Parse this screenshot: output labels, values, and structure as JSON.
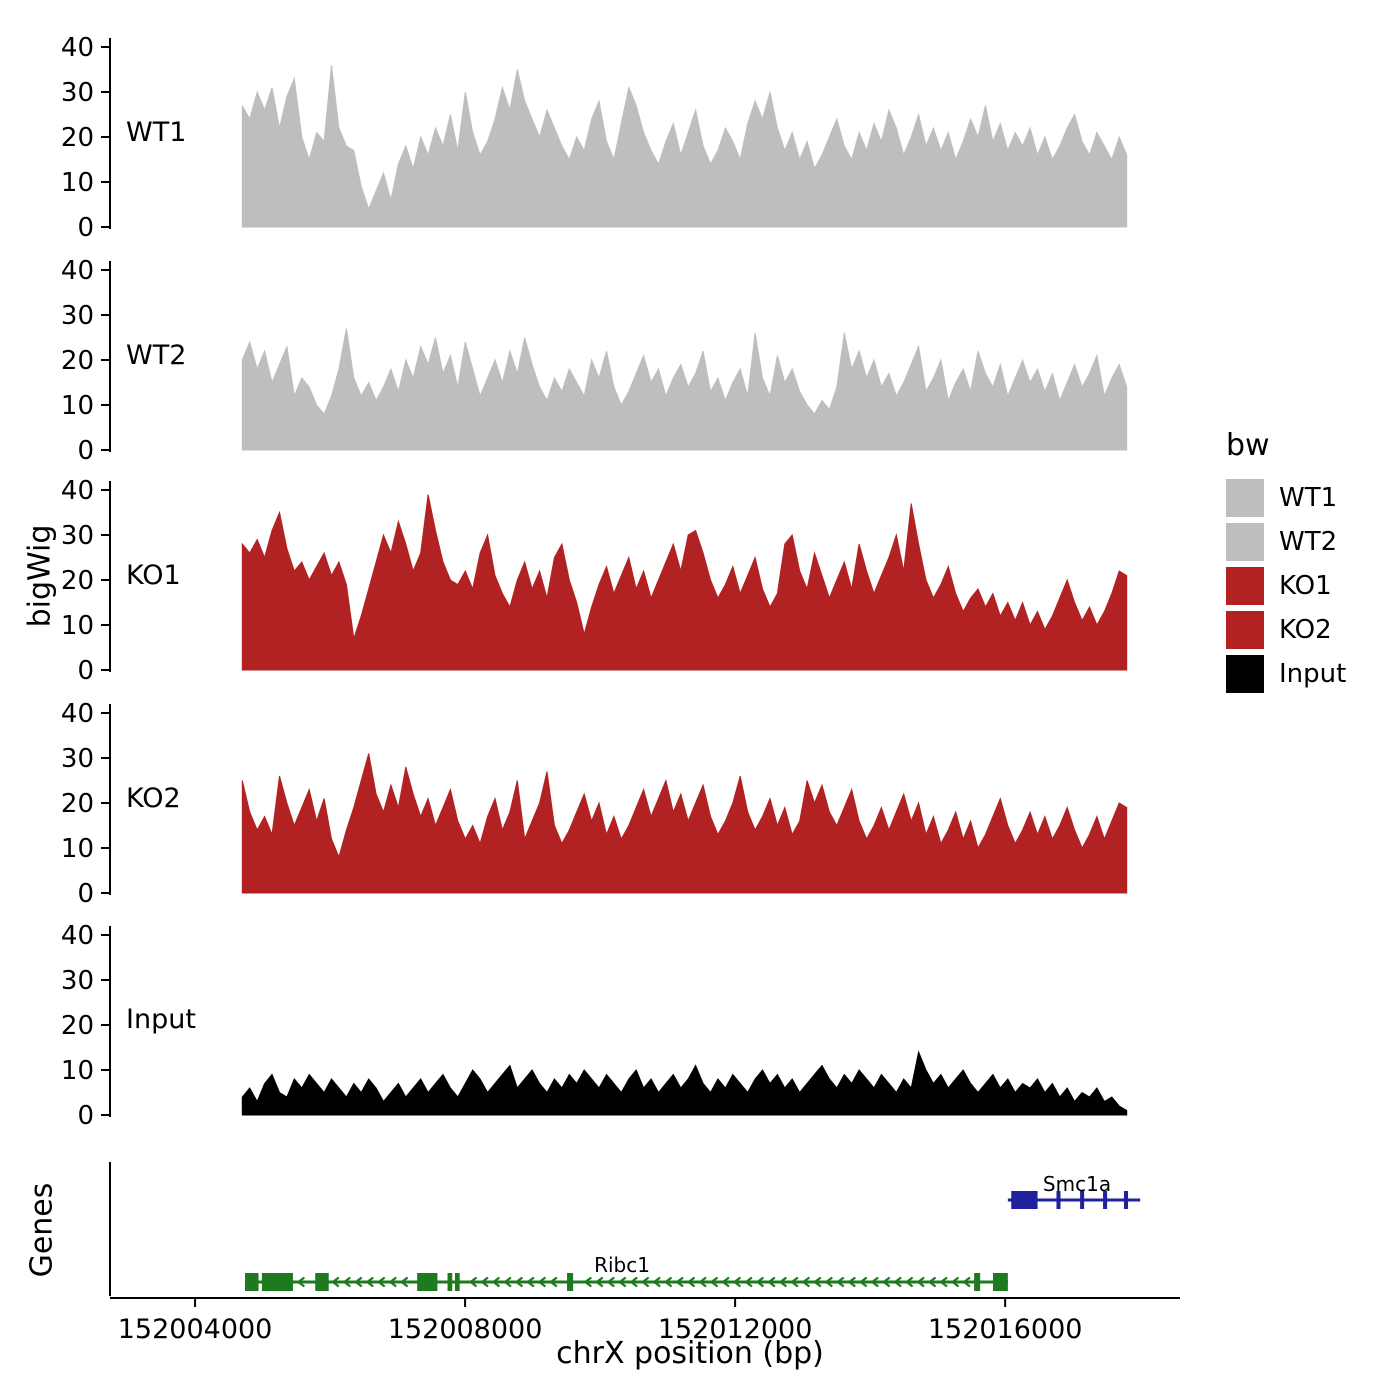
{
  "figure": {
    "ylab": "bigWig",
    "genes_lab": "Genes",
    "xlab": "chrX position (bp)"
  },
  "legend": {
    "title": "bw",
    "items": [
      {
        "label": "WT1",
        "color": "#bebebe"
      },
      {
        "label": "WT2",
        "color": "#bebebe"
      },
      {
        "label": "KO1",
        "color": "#b22222"
      },
      {
        "label": "KO2",
        "color": "#b22222"
      },
      {
        "label": "Input",
        "color": "#000000"
      }
    ]
  },
  "chart_data": {
    "type": "area",
    "title": "",
    "xlabel": "chrX position (bp)",
    "ylabel": "bigWig",
    "legend_position": "right",
    "grid": false,
    "xlim": [
      152002740,
      152018590
    ],
    "x_ticks": [
      152004000,
      152008000,
      152012000,
      152016000
    ],
    "x_tick_labels": [
      "152004000",
      "152008000",
      "152012000",
      "152016000"
    ],
    "ylim": [
      0,
      40
    ],
    "y_ticks": [
      0,
      10,
      20,
      30,
      40
    ],
    "x_data_range": [
      152004700,
      152017800
    ],
    "tracks": [
      {
        "name": "WT1",
        "color": "#bebebe",
        "values": [
          27,
          24,
          30,
          26,
          31,
          22,
          29,
          33,
          20,
          15,
          21,
          19,
          36,
          22,
          18,
          17,
          9,
          4,
          8,
          12,
          6,
          14,
          18,
          13,
          20,
          16,
          22,
          18,
          25,
          17,
          30,
          21,
          16,
          19,
          24,
          31,
          26,
          35,
          28,
          24,
          20,
          26,
          22,
          18,
          15,
          20,
          17,
          24,
          28,
          19,
          15,
          23,
          31,
          27,
          21,
          17,
          14,
          19,
          23,
          16,
          21,
          26,
          18,
          14,
          17,
          22,
          19,
          15,
          23,
          28,
          24,
          30,
          22,
          17,
          21,
          15,
          19,
          13,
          16,
          20,
          24,
          18,
          15,
          21,
          17,
          23,
          19,
          26,
          22,
          16,
          20,
          25,
          18,
          22,
          17,
          21,
          15,
          19,
          24,
          20,
          27,
          19,
          23,
          17,
          21,
          18,
          22,
          16,
          20,
          15,
          18,
          22,
          25,
          19,
          16,
          21,
          18,
          15,
          20,
          16
        ]
      },
      {
        "name": "WT2",
        "color": "#bebebe",
        "values": [
          20,
          24,
          18,
          22,
          15,
          19,
          23,
          12,
          16,
          14,
          10,
          8,
          12,
          18,
          27,
          16,
          12,
          15,
          11,
          14,
          18,
          13,
          20,
          16,
          23,
          19,
          25,
          17,
          21,
          14,
          24,
          18,
          12,
          16,
          20,
          15,
          22,
          17,
          25,
          19,
          14,
          11,
          16,
          13,
          18,
          15,
          12,
          20,
          16,
          22,
          14,
          10,
          13,
          17,
          21,
          15,
          18,
          12,
          16,
          19,
          14,
          17,
          22,
          13,
          16,
          11,
          15,
          18,
          12,
          26,
          16,
          12,
          21,
          15,
          18,
          13,
          10,
          8,
          11,
          9,
          14,
          26,
          18,
          22,
          16,
          20,
          14,
          17,
          12,
          15,
          19,
          23,
          13,
          16,
          20,
          11,
          15,
          18,
          13,
          22,
          17,
          14,
          19,
          12,
          16,
          20,
          15,
          18,
          13,
          17,
          11,
          15,
          19,
          14,
          17,
          21,
          12,
          16,
          19,
          14
        ]
      },
      {
        "name": "KO1",
        "color": "#b22222",
        "values": [
          28,
          26,
          29,
          25,
          31,
          35,
          27,
          22,
          24,
          20,
          23,
          26,
          21,
          24,
          19,
          7,
          12,
          18,
          24,
          30,
          26,
          33,
          28,
          22,
          26,
          39,
          31,
          24,
          20,
          19,
          22,
          18,
          26,
          30,
          21,
          17,
          14,
          20,
          24,
          18,
          22,
          16,
          25,
          28,
          20,
          15,
          8,
          14,
          19,
          23,
          17,
          21,
          25,
          18,
          22,
          16,
          20,
          24,
          28,
          22,
          30,
          31,
          26,
          20,
          16,
          19,
          23,
          17,
          21,
          25,
          18,
          14,
          17,
          28,
          30,
          22,
          18,
          26,
          21,
          16,
          20,
          24,
          18,
          28,
          22,
          17,
          21,
          25,
          30,
          22,
          37,
          28,
          20,
          16,
          19,
          23,
          17,
          13,
          16,
          18,
          14,
          17,
          12,
          15,
          11,
          15,
          10,
          13,
          9,
          12,
          16,
          20,
          15,
          11,
          14,
          10,
          13,
          17,
          22,
          21
        ]
      },
      {
        "name": "KO2",
        "color": "#b22222",
        "values": [
          25,
          18,
          14,
          17,
          13,
          26,
          20,
          15,
          19,
          23,
          16,
          21,
          12,
          8,
          14,
          19,
          25,
          31,
          22,
          18,
          24,
          19,
          28,
          22,
          17,
          21,
          15,
          19,
          23,
          16,
          12,
          15,
          11,
          17,
          21,
          14,
          18,
          25,
          12,
          16,
          20,
          27,
          15,
          11,
          14,
          18,
          22,
          16,
          20,
          13,
          17,
          12,
          15,
          19,
          23,
          17,
          21,
          25,
          18,
          22,
          16,
          20,
          24,
          17,
          13,
          16,
          20,
          26,
          18,
          14,
          17,
          21,
          15,
          19,
          13,
          16,
          25,
          20,
          24,
          18,
          15,
          19,
          23,
          16,
          12,
          15,
          19,
          14,
          18,
          22,
          16,
          20,
          13,
          17,
          11,
          14,
          18,
          12,
          16,
          10,
          13,
          17,
          21,
          15,
          11,
          14,
          18,
          13,
          17,
          12,
          15,
          19,
          14,
          10,
          13,
          17,
          12,
          16,
          20,
          19
        ]
      },
      {
        "name": "Input",
        "color": "#000000",
        "values": [
          4,
          6,
          3,
          7,
          9,
          5,
          4,
          8,
          6,
          9,
          7,
          5,
          8,
          6,
          4,
          7,
          5,
          8,
          6,
          3,
          5,
          7,
          4,
          6,
          8,
          5,
          7,
          9,
          6,
          4,
          7,
          10,
          8,
          5,
          7,
          9,
          11,
          6,
          8,
          10,
          7,
          5,
          8,
          6,
          9,
          7,
          10,
          8,
          6,
          9,
          7,
          5,
          8,
          10,
          6,
          8,
          5,
          7,
          9,
          6,
          8,
          11,
          7,
          5,
          8,
          6,
          9,
          7,
          5,
          8,
          10,
          7,
          9,
          6,
          8,
          5,
          7,
          9,
          11,
          8,
          6,
          9,
          7,
          10,
          8,
          6,
          9,
          7,
          5,
          8,
          6,
          14,
          10,
          7,
          9,
          6,
          8,
          10,
          7,
          5,
          7,
          9,
          6,
          8,
          5,
          7,
          6,
          8,
          5,
          7,
          4,
          6,
          3,
          5,
          4,
          6,
          3,
          4,
          2,
          1
        ]
      }
    ],
    "genes": [
      {
        "name": "Smc1a",
        "strand": "+",
        "color": "#21219e",
        "start": 152016040,
        "end": 152018000,
        "exons": [
          [
            152016090,
            152016480
          ],
          [
            152016760,
            152016820
          ],
          [
            152017110,
            152017170
          ],
          [
            152017450,
            152017510
          ],
          [
            152017760,
            152017820
          ]
        ]
      },
      {
        "name": "Ribc1",
        "strand": "-",
        "color": "#1f7a1f",
        "start": 152004740,
        "end": 152016040,
        "exons": [
          [
            152004740,
            152004940
          ],
          [
            152004990,
            152005450
          ],
          [
            152005780,
            152005980
          ],
          [
            152007290,
            152007590
          ],
          [
            152007740,
            152007810
          ],
          [
            152007850,
            152007920
          ],
          [
            152009510,
            152009600
          ],
          [
            152015540,
            152015630
          ],
          [
            152015820,
            152016040
          ]
        ]
      }
    ]
  }
}
